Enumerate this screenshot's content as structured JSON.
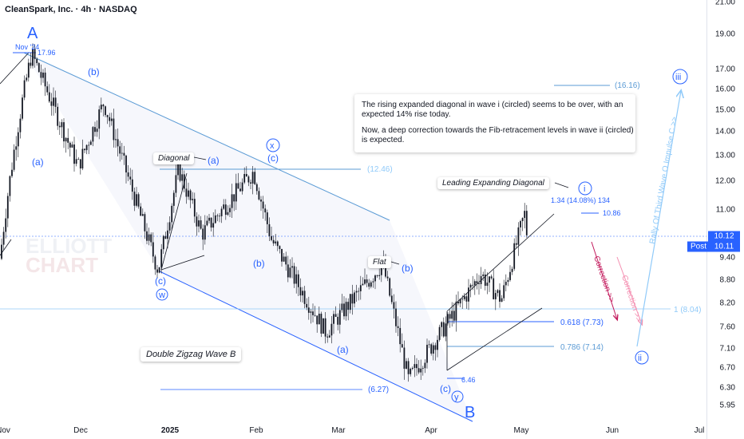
{
  "header": {
    "title": "CleanSpark, Inc. · 4h · NASDAQ"
  },
  "watermark": {
    "line1": "ELLIOTT",
    "line2": "CHART"
  },
  "note": {
    "p1": "The rising expanded diagonal in wave i (circled) seems to be over, with an expected 14% rise today.",
    "p2": "Now, a deep correction towards the Fib-retracement levels in wave ii (circled) is expected."
  },
  "callouts": {
    "diagonal": "Diagonal",
    "flat": "Flat",
    "lead_diag": "Leading Expanding Diagonal",
    "double_zigzag": "Double Zigzag Wave B"
  },
  "price_labels": {
    "high_date": "Nov '24",
    "high": "17.96",
    "low": "6.46",
    "top": "10.86",
    "rise": "1.34 (14.08%) 134",
    "lvl_1616": "(16.16)",
    "lvl_1246": "(12.46)",
    "lvl_627": "(6.27)",
    "fib_0618": "0.618 (7.73)",
    "fib_0786": "0.786 (7.14)",
    "fib_1": "1 (8.04)"
  },
  "arrows": {
    "correction1": "Correction >>",
    "correction2": "Correction >>",
    "rally": "Rally Of Third Wave O Impulse C >>"
  },
  "waves": {
    "A": "A",
    "B": "B",
    "b_top": "(b)",
    "a_left": "(a)",
    "a_diag": "(a)",
    "c_w": "(c)",
    "w": "w",
    "x": "x",
    "c_x": "(c)",
    "b_mid": "(b)",
    "b_flat": "(b)",
    "a_low": "(a)",
    "c_y": "(c)",
    "y": "y",
    "i": "i",
    "ii": "ii",
    "iii": "iii"
  },
  "colors": {
    "up": "#089981",
    "down": "#f23645",
    "wave": "#2962ff",
    "channel": "#5b9bd5",
    "correction1": "#c2185b",
    "correction2": "#f48fb1",
    "rally": "#90caf9",
    "price_line": "#2962ff"
  },
  "axis": {
    "y_ticks": [
      "21.00",
      "19.00",
      "17.00",
      "16.00",
      "15.00",
      "14.00",
      "13.00",
      "12.00",
      "11.00",
      "10.12",
      "9.40",
      "8.80",
      "8.20",
      "7.60",
      "7.10",
      "6.70",
      "6.30",
      "5.95"
    ],
    "x_ticks": [
      {
        "label": "Nov",
        "bold": false
      },
      {
        "label": "Dec",
        "bold": false
      },
      {
        "label": "2025",
        "bold": true
      },
      {
        "label": "Feb",
        "bold": false
      },
      {
        "label": "Mar",
        "bold": false
      },
      {
        "label": "Apr",
        "bold": false
      },
      {
        "label": "May",
        "bold": false
      },
      {
        "label": "Jun",
        "bold": false
      },
      {
        "label": "Jul",
        "bold": false
      }
    ]
  },
  "price": {
    "last": "10.12",
    "post_label": "Post",
    "post": "10.11"
  },
  "chart_data": {
    "type": "candlestick",
    "title": "CleanSpark, Inc. · 4h · NASDAQ",
    "x_range": [
      "2024-11",
      "2025-07"
    ],
    "y_range": [
      5.9,
      21.0
    ],
    "y_scale": "log",
    "anchor_prices": [
      {
        "date": "2024-11-12",
        "price": 17.96
      },
      {
        "date": "2024-11-30",
        "price": 12.6
      },
      {
        "date": "2024-12-10",
        "price": 15.4
      },
      {
        "date": "2024-12-31",
        "price": 9.1
      },
      {
        "date": "2025-01-08",
        "price": 12.5
      },
      {
        "date": "2025-01-17",
        "price": 10.2
      },
      {
        "date": "2025-02-06",
        "price": 12.4
      },
      {
        "date": "2025-02-13",
        "price": 10.0
      },
      {
        "date": "2025-03-06",
        "price": 7.5
      },
      {
        "date": "2025-03-28",
        "price": 9.3
      },
      {
        "date": "2025-04-07",
        "price": 6.46
      },
      {
        "date": "2025-05-05",
        "price": 9.0
      },
      {
        "date": "2025-05-13",
        "price": 8.3
      },
      {
        "date": "2025-05-22",
        "price": 10.86
      },
      {
        "date": "2025-05-23",
        "price": 10.12
      }
    ],
    "levels": [
      16.16,
      12.46,
      6.27,
      7.73,
      7.14,
      8.04
    ],
    "last_price": 10.12,
    "post_price": 10.11
  }
}
